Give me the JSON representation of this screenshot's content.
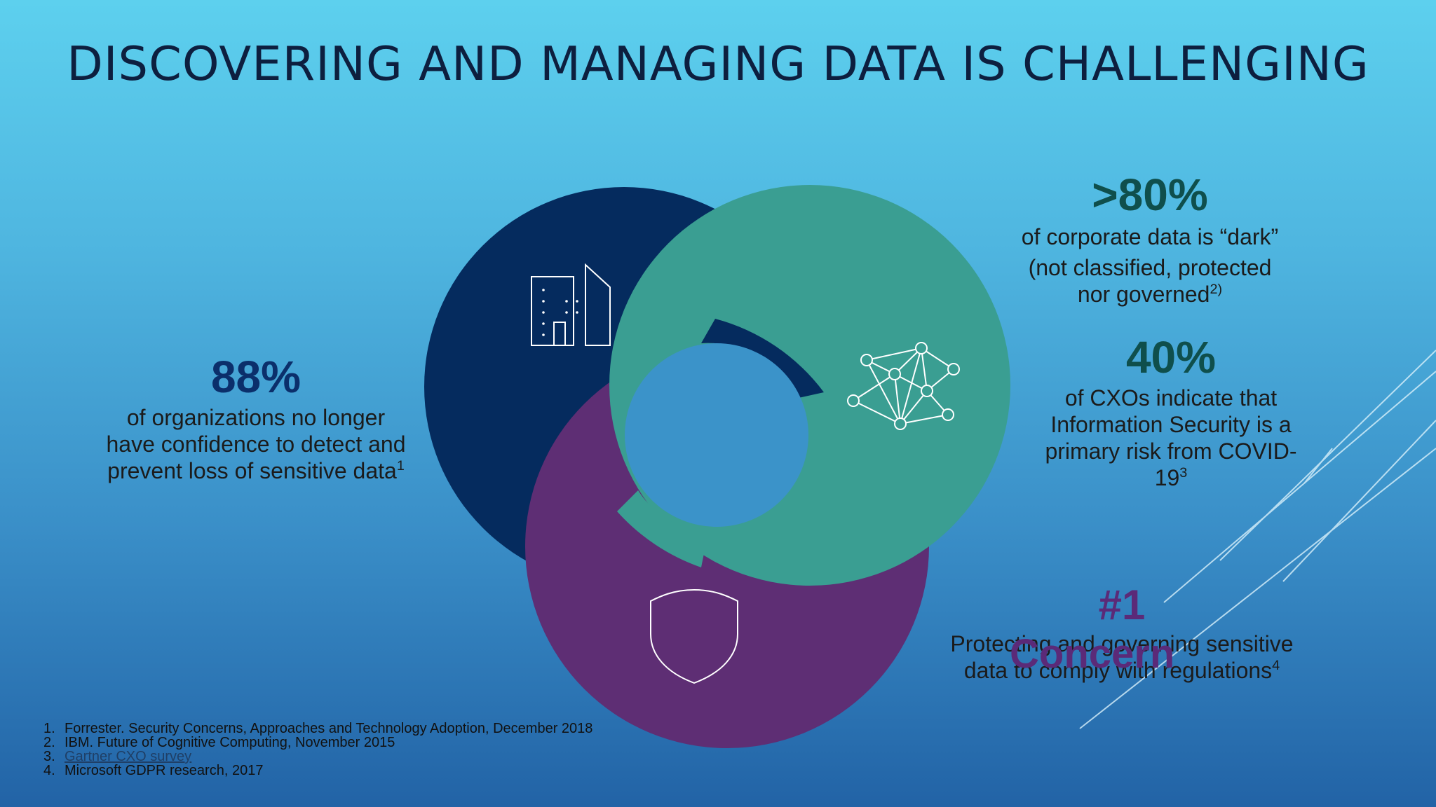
{
  "title": "DISCOVERING AND MANAGING DATA IS CHALLENGING",
  "colors": {
    "navy_circle": "#052b5e",
    "teal_circle": "#3a9e92",
    "purple_circle": "#5e2e74",
    "title": "#0d1f3f"
  },
  "icons": [
    "buildings-icon",
    "network-icon",
    "shield-icon"
  ],
  "stats": {
    "s88": {
      "value": "88%",
      "text": "of organizations no longer have confidence to detect and prevent loss of sensitive data",
      "sup": "1"
    },
    "s80": {
      "value": ">80%",
      "line1": "of corporate data is “dark”",
      "line2": "(not classified, protected",
      "line3": "nor governed",
      "sup": "2)"
    },
    "s40": {
      "value": "40%",
      "text": "of CXOs indicate that Information Security is a primary risk from COVID-19",
      "sup": "3"
    },
    "s1": {
      "value": "#1",
      "concern": "Concern",
      "text": "Protecting and governing sensitive data to comply with regulations",
      "sup": "4"
    }
  },
  "references": [
    {
      "num": "1.",
      "text": "Forrester. Security Concerns, Approaches and Technology Adoption, December 2018"
    },
    {
      "num": "2.",
      "text": "IBM. Future of Cognitive Computing, November 2015"
    },
    {
      "num": "3.",
      "text": "Gartner CXO survey"
    },
    {
      "num": "4.",
      "text": "Microsoft GDPR research, 2017"
    }
  ]
}
